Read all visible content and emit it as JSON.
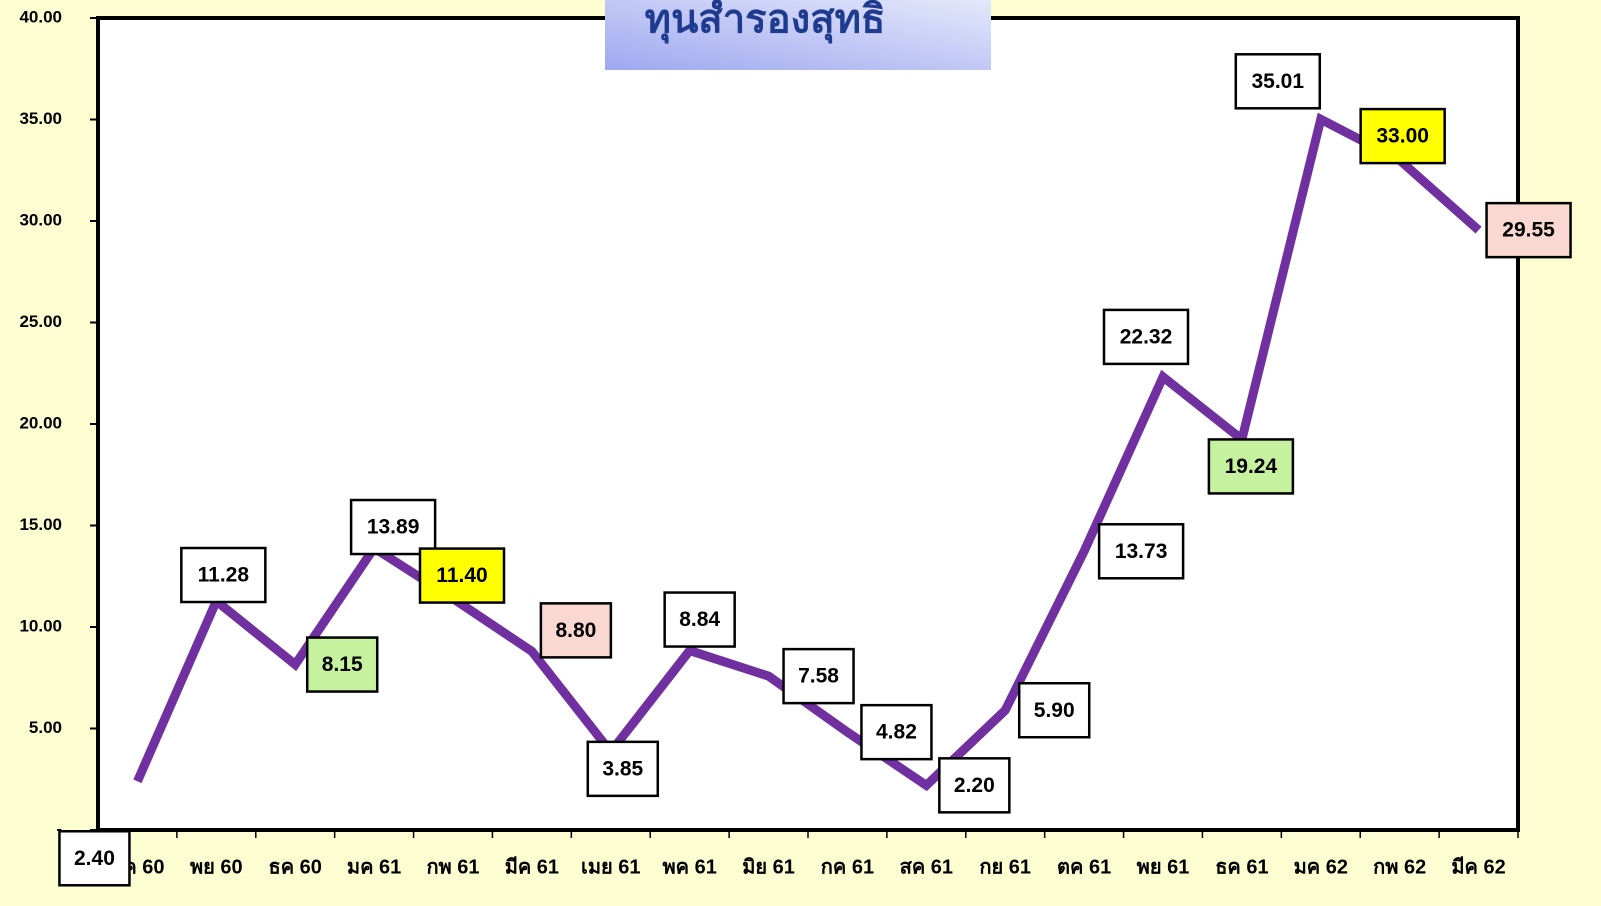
{
  "chart_data": {
    "type": "line",
    "title": "ทุนสำรองสุทธิ",
    "categories": [
      "ตค 60",
      "พย 60",
      "ธค 60",
      "มค 61",
      "กพ 61",
      "มีค 61",
      "เมย 61",
      "พค 61",
      "มิย 61",
      "กค 61",
      "สค 61",
      "กย 61",
      "ตค 61",
      "พย 61",
      "ธค 61",
      "มค 62",
      "กพ 62",
      "มีค 62"
    ],
    "series": [
      {
        "color": "#7030a0",
        "values": [
          2.4,
          11.28,
          8.15,
          13.89,
          11.4,
          8.8,
          3.85,
          8.84,
          7.58,
          4.82,
          2.2,
          5.9,
          13.73,
          22.32,
          19.24,
          35.01,
          33.0,
          29.55
        ],
        "value_labels": [
          "2.40",
          "11.28",
          "8.15",
          "13.89",
          "11.40",
          "8.80",
          "3.85",
          "8.84",
          "7.58",
          "4.82",
          "2.20",
          "5.90",
          "13.73",
          "22.32",
          "19.24",
          "35.01",
          "33.00",
          "29.55"
        ],
        "label_colors": [
          "#ffffff",
          "#ffffff",
          "#c6f2a0",
          "#ffffff",
          "#ffff00",
          "#f8d8d0",
          "#ffffff",
          "#ffffff",
          "#ffffff",
          "#ffffff",
          "#ffffff",
          "#ffffff",
          "#ffffff",
          "#ffffff",
          "#c6f2a0",
          "#ffffff",
          "#ffff00",
          "#f8d8d0"
        ]
      }
    ],
    "ylim": [
      0,
      40
    ],
    "yticks": [
      {
        "value": 0,
        "label": "-"
      },
      {
        "value": 5,
        "label": "5.00"
      },
      {
        "value": 10,
        "label": "10.00"
      },
      {
        "value": 15,
        "label": "15.00"
      },
      {
        "value": 20,
        "label": "20.00"
      },
      {
        "value": 25,
        "label": "25.00"
      },
      {
        "value": 30,
        "label": "30.00"
      },
      {
        "value": 35,
        "label": "35.00"
      },
      {
        "value": 40,
        "label": "40.00"
      }
    ]
  }
}
